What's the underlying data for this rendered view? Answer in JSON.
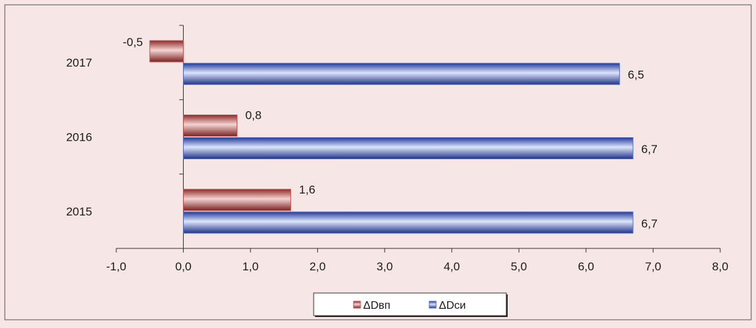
{
  "chart_data": {
    "type": "bar",
    "orientation": "horizontal",
    "categories": [
      "2017",
      "2016",
      "2015"
    ],
    "series": [
      {
        "name": "ΔDвп",
        "values": [
          -0.5,
          0.8,
          1.6
        ],
        "labels": [
          "-0,5",
          "0,8",
          "1,6"
        ],
        "color": "#c0504d"
      },
      {
        "name": "ΔDси",
        "values": [
          6.5,
          6.7,
          6.7
        ],
        "labels": [
          "6,5",
          "6,7",
          "6,7"
        ],
        "color": "#4f6fc4"
      }
    ],
    "xlim": [
      -1,
      8
    ],
    "xticks": [
      -1,
      0,
      1,
      2,
      3,
      4,
      5,
      6,
      7,
      8
    ],
    "xtick_labels": [
      "-1,0",
      "0,0",
      "1,0",
      "2,0",
      "3,0",
      "4,0",
      "5,0",
      "6,0",
      "7,0",
      "8,0"
    ],
    "legend_position": "bottom",
    "grid": false,
    "title": "",
    "xlabel": "",
    "ylabel": "",
    "background": "#f6e7e6"
  }
}
